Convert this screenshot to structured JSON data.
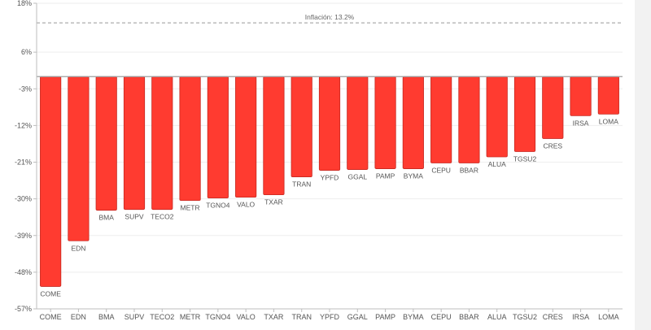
{
  "chart_data": {
    "type": "bar",
    "categories": [
      "COME",
      "EDN",
      "BMA",
      "SUPV",
      "TECO2",
      "METR",
      "TGNO4",
      "VALO",
      "TXAR",
      "TRAN",
      "YPFD",
      "GGAL",
      "PAMP",
      "BYMA",
      "CEPU",
      "BBAR",
      "ALUA",
      "TGSU2",
      "CRES",
      "IRSA",
      "LOMA"
    ],
    "values": [
      -51.5,
      -40.3,
      -32.8,
      -32.6,
      -32.6,
      -30.4,
      -29.8,
      -29.6,
      -29.0,
      -24.6,
      -23.0,
      -22.8,
      -22.6,
      -22.6,
      -21.2,
      -21.2,
      -19.7,
      -18.4,
      -15.2,
      -9.6,
      -9.2
    ],
    "ylim": [
      -57,
      18
    ],
    "yticks": [
      "18%",
      "6%",
      "-3%",
      "-12%",
      "-21%",
      "-30%",
      "-39%",
      "-48%",
      "-57%"
    ],
    "ytick_values": [
      18,
      6,
      -3,
      -12,
      -21,
      -30,
      -39,
      -48,
      -57
    ],
    "reference_line": {
      "value": 13.2,
      "label": "Inflación: 13.2%"
    },
    "colors": {
      "bar": "#ff3b30",
      "bar_edge": "#c62820",
      "zero_line": "#9e9e9e",
      "grid": "#eeeeee",
      "axis": "#bdbdbd"
    },
    "grid": true
  }
}
